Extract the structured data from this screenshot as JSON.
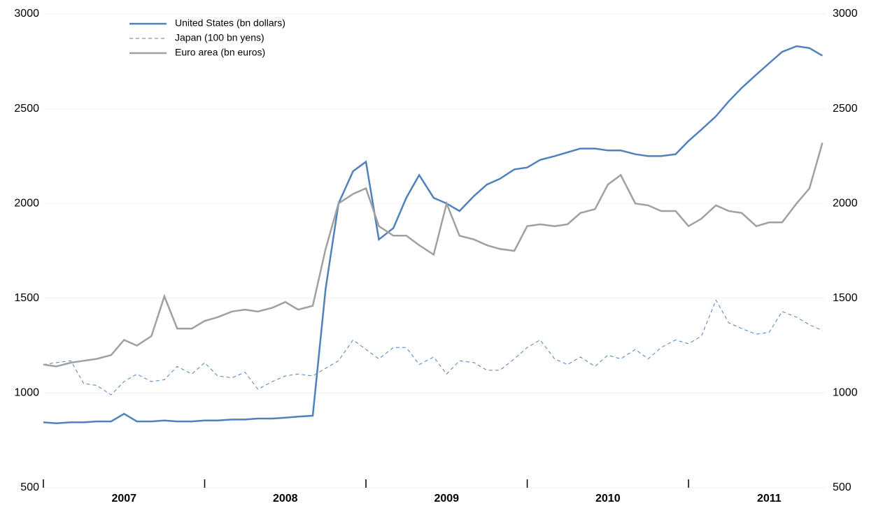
{
  "chart_data": {
    "type": "line",
    "x": [
      2007.0,
      2007.08,
      2007.17,
      2007.25,
      2007.33,
      2007.42,
      2007.5,
      2007.58,
      2007.67,
      2007.75,
      2007.83,
      2007.92,
      2008.0,
      2008.08,
      2008.17,
      2008.25,
      2008.33,
      2008.42,
      2008.5,
      2008.58,
      2008.67,
      2008.75,
      2008.83,
      2008.92,
      2009.0,
      2009.08,
      2009.17,
      2009.25,
      2009.33,
      2009.42,
      2009.5,
      2009.58,
      2009.67,
      2009.75,
      2009.83,
      2009.92,
      2010.0,
      2010.08,
      2010.17,
      2010.25,
      2010.33,
      2010.42,
      2010.5,
      2010.58,
      2010.67,
      2010.75,
      2010.83,
      2010.92,
      2011.0,
      2011.08,
      2011.17,
      2011.25,
      2011.33,
      2011.42,
      2011.5,
      2011.58,
      2011.67,
      2011.75,
      2011.83
    ],
    "series": [
      {
        "name": "United States (bn dollars)",
        "color": "#4f81bd",
        "dashed": false,
        "values": [
          845,
          840,
          845,
          845,
          850,
          850,
          890,
          850,
          850,
          855,
          850,
          850,
          855,
          855,
          860,
          860,
          865,
          865,
          870,
          875,
          880,
          1550,
          2000,
          2170,
          2220,
          1810,
          1870,
          2030,
          2150,
          2030,
          2000,
          1960,
          2040,
          2100,
          2130,
          2180,
          2190,
          2230,
          2250,
          2270,
          2290,
          2290,
          2280,
          2280,
          2260,
          2250,
          2250,
          2260,
          2330,
          2390,
          2460,
          2540,
          2610,
          2680,
          2740,
          2800,
          2830,
          2820,
          2780
        ]
      },
      {
        "name": "Japan (100 bn yens)",
        "color": "#4f81bd",
        "dashed": true,
        "values": [
          1150,
          1160,
          1170,
          1050,
          1040,
          990,
          1060,
          1100,
          1060,
          1070,
          1140,
          1100,
          1160,
          1090,
          1080,
          1110,
          1020,
          1060,
          1090,
          1100,
          1090,
          1130,
          1170,
          1280,
          1230,
          1180,
          1240,
          1240,
          1150,
          1190,
          1100,
          1170,
          1160,
          1120,
          1120,
          1180,
          1240,
          1280,
          1180,
          1150,
          1190,
          1140,
          1200,
          1180,
          1230,
          1180,
          1240,
          1280,
          1260,
          1300,
          1490,
          1370,
          1340,
          1310,
          1320,
          1430,
          1400,
          1360,
          1330
        ]
      },
      {
        "name": "Euro area (bn euros)",
        "color": "#a0a0a0",
        "dashed": false,
        "values": [
          1150,
          1140,
          1160,
          1170,
          1180,
          1200,
          1280,
          1250,
          1300,
          1510,
          1340,
          1340,
          1380,
          1400,
          1430,
          1440,
          1430,
          1450,
          1480,
          1440,
          1460,
          1760,
          2000,
          2050,
          2080,
          1880,
          1830,
          1830,
          1780,
          1730,
          2000,
          1830,
          1810,
          1780,
          1760,
          1750,
          1880,
          1890,
          1880,
          1890,
          1950,
          1970,
          2100,
          2150,
          2000,
          1990,
          1960,
          1960,
          1880,
          1920,
          1990,
          1960,
          1950,
          1880,
          1900,
          1900,
          2000,
          2080,
          2320
        ]
      }
    ],
    "xlim": [
      2007,
      2011.85
    ],
    "xticks": [
      {
        "value": 2007.5,
        "label": "2007"
      },
      {
        "value": 2008.5,
        "label": "2008"
      },
      {
        "value": 2009.5,
        "label": "2009"
      },
      {
        "value": 2010.5,
        "label": "2010"
      },
      {
        "value": 2011.5,
        "label": "2011"
      }
    ],
    "xmajor_ticks": [
      2007,
      2008,
      2009,
      2010,
      2011
    ],
    "ylim": [
      500,
      3000
    ],
    "yticks": [
      500,
      1000,
      1500,
      2000,
      2500,
      3000
    ],
    "y2lim": [
      500,
      3000
    ],
    "y2ticks": [
      500,
      1000,
      1500,
      2000,
      2500,
      3000
    ],
    "grid": true
  }
}
